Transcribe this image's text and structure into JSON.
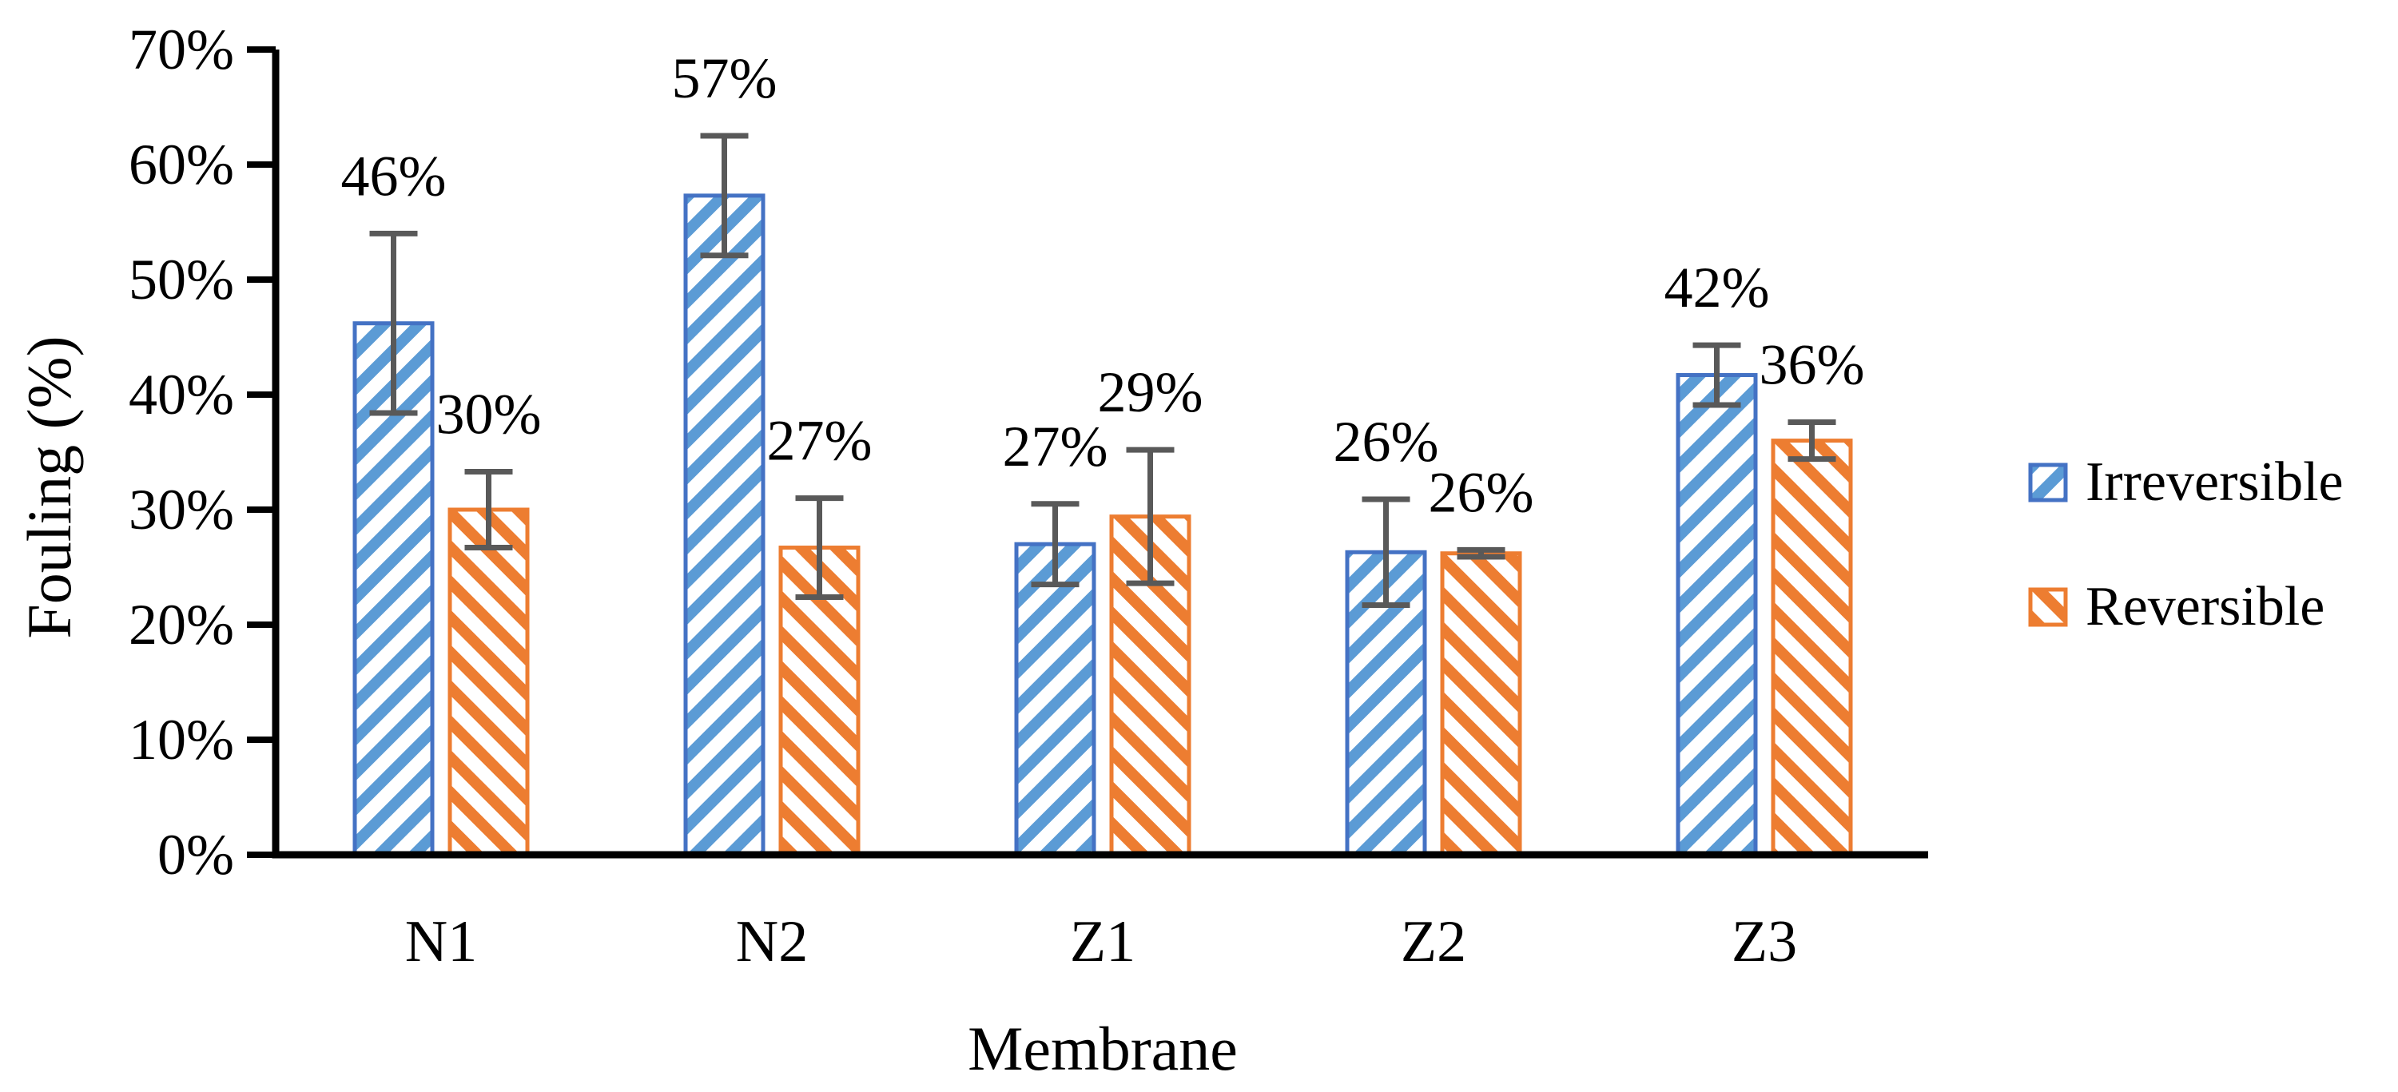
{
  "page": {
    "background": "#ffffff"
  },
  "chart_data": {
    "type": "bar",
    "title": "",
    "xlabel": "Membrane",
    "ylabel": "Fouling (%)",
    "categories": [
      "N1",
      "N2",
      "Z1",
      "Z2",
      "Z3"
    ],
    "series": [
      {
        "name": "Irreversible",
        "values": [
          46.2,
          57.3,
          27.0,
          26.3,
          41.7
        ],
        "data_labels": [
          "46%",
          "57%",
          "27%",
          "26%",
          "42%"
        ],
        "errors": [
          7.8,
          5.2,
          3.5,
          4.6,
          2.6
        ],
        "stripe_color": "#5B9BD5",
        "border_color": "#4472C4",
        "hatch": "forward-diagonal"
      },
      {
        "name": "Reversible",
        "values": [
          30.0,
          26.7,
          29.4,
          26.2,
          36.0
        ],
        "data_labels": [
          "30%",
          "27%",
          "29%",
          "26%",
          "36%"
        ],
        "errors": [
          3.3,
          4.3,
          5.8,
          0.3,
          1.6
        ],
        "stripe_color": "#ED7D31",
        "border_color": "#ED7D31",
        "hatch": "backward-diagonal"
      }
    ],
    "ylim": [
      0,
      70
    ],
    "ytick_step": 10,
    "ytick_labels": [
      "0%",
      "10%",
      "20%",
      "30%",
      "40%",
      "50%",
      "60%",
      "70%"
    ],
    "error_bar_color": "#595959",
    "axis_color": "#000000",
    "grid": false,
    "legend_position": "right"
  }
}
